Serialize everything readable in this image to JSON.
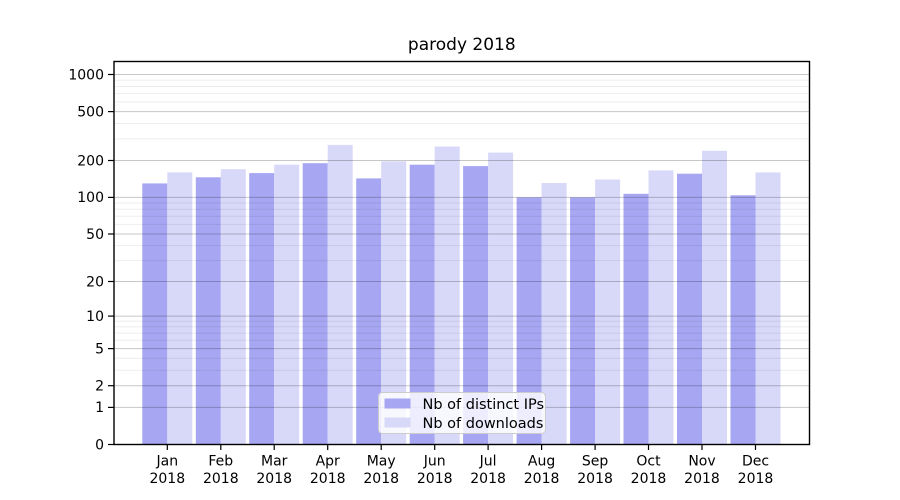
{
  "figure": {
    "title": "parody 2018"
  },
  "chart_data": {
    "type": "bar",
    "title": "parody 2018",
    "xlabel": "",
    "ylabel": "",
    "yscale": "symlog (pixel position proportional to log10(1+y), linear near 0)",
    "ylim": [
      0,
      1258
    ],
    "grid": true,
    "y_ticks": [
      0,
      1,
      2,
      5,
      10,
      20,
      50,
      100,
      200,
      500,
      1000
    ],
    "y_minor_gridlines": [
      3,
      4,
      6,
      7,
      8,
      9,
      30,
      40,
      60,
      70,
      80,
      90,
      300,
      400,
      600,
      700,
      800,
      900
    ],
    "categories": [
      "Jan 2018",
      "Feb 2018",
      "Mar 2018",
      "Apr 2018",
      "May 2018",
      "Jun 2018",
      "Jul 2018",
      "Aug 2018",
      "Sep 2018",
      "Oct 2018",
      "Nov 2018",
      "Dec 2018"
    ],
    "series": [
      {
        "name": "Nb of distinct IPs",
        "color": "#a6a6f2",
        "values": [
          130,
          146,
          158,
          190,
          143,
          185,
          180,
          100,
          100,
          107,
          156,
          104
        ]
      },
      {
        "name": "Nb of downloads",
        "color": "#d8d8f8",
        "values": [
          160,
          170,
          185,
          268,
          197,
          260,
          232,
          131,
          140,
          166,
          240,
          160
        ]
      }
    ],
    "legend": {
      "position": "inside bottom-center",
      "entries": [
        "Nb of distinct IPs",
        "Nb of downloads"
      ]
    },
    "colors": {
      "background": "#ffffff",
      "spine": "#000000",
      "grid_major": "rgba(0,0,0,0.22)",
      "grid_minor": "rgba(0,0,0,0.07)",
      "legend_border": "#cccccc",
      "legend_background": "rgba(255,255,255,0.8)",
      "tick_label_color": "#000000"
    }
  }
}
